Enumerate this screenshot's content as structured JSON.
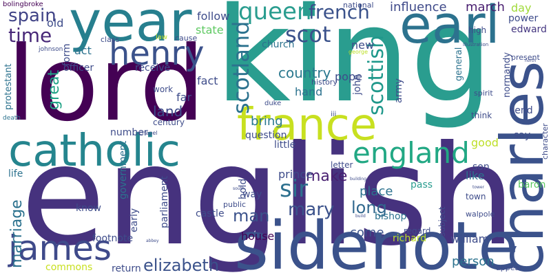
{
  "cloud": {
    "words": [
      {
        "text": "king",
        "color": "#2a9d8f"
      },
      {
        "text": "english",
        "color": "#46327e"
      },
      {
        "text": "lord",
        "color": "#440154"
      },
      {
        "text": "year",
        "color": "#277f8e"
      },
      {
        "text": "sidenote",
        "color": "#3b528b"
      },
      {
        "text": "catholic",
        "color": "#25858e"
      },
      {
        "text": "charles",
        "color": "#3b528b"
      },
      {
        "text": "earl",
        "color": "#2c728e"
      },
      {
        "text": "france",
        "color": "#c8e020"
      },
      {
        "text": "henry",
        "color": "#3b528b"
      },
      {
        "text": "james",
        "color": "#3f4a8a"
      },
      {
        "text": "england",
        "color": "#22a884"
      },
      {
        "text": "queen",
        "color": "#2a9d8f"
      },
      {
        "text": "scotland",
        "color": "#2c728e"
      },
      {
        "text": "scottish",
        "color": "#1f988b"
      },
      {
        "text": "scot",
        "color": "#3b528b"
      },
      {
        "text": "french",
        "color": "#3b528b"
      },
      {
        "text": "sir",
        "color": "#2d708e"
      },
      {
        "text": "mary",
        "color": "#3b528b"
      },
      {
        "text": "elizabeth",
        "color": "#3b528b"
      },
      {
        "text": "time",
        "color": "#482878"
      },
      {
        "text": "spain",
        "color": "#414487"
      },
      {
        "text": "marriage",
        "color": "#2c728e"
      },
      {
        "text": "great",
        "color": "#20a386"
      },
      {
        "text": "man",
        "color": "#3b528b"
      },
      {
        "text": "make",
        "color": "#481f70"
      },
      {
        "text": "long",
        "color": "#31688e"
      },
      {
        "text": "come",
        "color": "#3b528b"
      },
      {
        "text": "country",
        "color": "#2a788e"
      },
      {
        "text": "influence",
        "color": "#3e4989"
      },
      {
        "text": "march",
        "color": "#481d6f"
      },
      {
        "text": "edward",
        "color": "#453781"
      },
      {
        "text": "bring",
        "color": "#2a788e"
      },
      {
        "text": "land",
        "color": "#3e4c8a"
      },
      {
        "text": "good",
        "color": "#bddf26"
      },
      {
        "text": "house",
        "color": "#440154"
      },
      {
        "text": "prince",
        "color": "#3e4c8a"
      },
      {
        "text": "place",
        "color": "#2c728e"
      },
      {
        "text": "william",
        "color": "#3e4c8a"
      },
      {
        "text": "person",
        "color": "#2c728e"
      },
      {
        "text": "pope",
        "color": "#3e4c8a"
      },
      {
        "text": "hand",
        "color": "#2c728e"
      },
      {
        "text": "army",
        "color": "#3e4c8a"
      },
      {
        "text": "john",
        "color": "#3e4c8a"
      },
      {
        "text": "new",
        "color": "#3e4c8a"
      },
      {
        "text": "church",
        "color": "#2c728e"
      },
      {
        "text": "state",
        "color": "#5ec962"
      },
      {
        "text": "follow",
        "color": "#3e4c8a"
      },
      {
        "text": "old",
        "color": "#3e4c8a"
      },
      {
        "text": "form",
        "color": "#3e4c8a"
      },
      {
        "text": "act",
        "color": "#2c728e"
      },
      {
        "text": "officer",
        "color": "#3e4c8a"
      },
      {
        "text": "receive",
        "color": "#3e4c8a"
      },
      {
        "text": "government",
        "color": "#2c728e"
      },
      {
        "text": "protestant",
        "color": "#2c728e"
      },
      {
        "text": "work",
        "color": "#3e4c8a"
      },
      {
        "text": "far",
        "color": "#3e4c8a"
      },
      {
        "text": "fact",
        "color": "#3e4c8a"
      },
      {
        "text": "century",
        "color": "#3e4c8a"
      },
      {
        "text": "day",
        "color": "#a0da39"
      },
      {
        "text": "power",
        "color": "#3e4c8a"
      },
      {
        "text": "high",
        "color": "#3e4c8a"
      },
      {
        "text": "general",
        "color": "#2c728e"
      },
      {
        "text": "normandy",
        "color": "#3e4c8a"
      },
      {
        "text": "history",
        "color": "#3e4c8a"
      },
      {
        "text": "national",
        "color": "#3e4c8a"
      },
      {
        "text": "parliament",
        "color": "#3e4c8a"
      },
      {
        "text": "early",
        "color": "#3e4c8a"
      },
      {
        "text": "castle",
        "color": "#3e4c8a"
      },
      {
        "text": "way",
        "color": "#3e4c8a"
      },
      {
        "text": "hold",
        "color": "#3e4c8a"
      },
      {
        "text": "public",
        "color": "#3e4c8a"
      },
      {
        "text": "little",
        "color": "#3e4c8a"
      },
      {
        "text": "question",
        "color": "#3e4c8a"
      },
      {
        "text": "letter",
        "color": "#3e4c8a"
      },
      {
        "text": "bishop",
        "color": "#2c728e"
      },
      {
        "text": "pass",
        "color": "#2a9d8f"
      },
      {
        "text": "town",
        "color": "#3e4c8a"
      },
      {
        "text": "regard",
        "color": "#3e4c8a"
      },
      {
        "text": "subject",
        "color": "#3e4c8a"
      },
      {
        "text": "walpole",
        "color": "#3e4c8a"
      },
      {
        "text": "baron",
        "color": "#5ec962"
      },
      {
        "text": "son",
        "color": "#3e4c8a"
      },
      {
        "text": "like",
        "color": "#2c728e"
      },
      {
        "text": "say",
        "color": "#3e4c8a"
      },
      {
        "text": "send",
        "color": "#3e4c8a"
      },
      {
        "text": "think",
        "color": "#3e4c8a"
      },
      {
        "text": "spirit",
        "color": "#3e4c8a"
      },
      {
        "text": "character",
        "color": "#3e4c8a"
      },
      {
        "text": "life",
        "color": "#2c728e"
      },
      {
        "text": "know",
        "color": "#3e4c8a"
      },
      {
        "text": "number",
        "color": "#3e4c8a"
      },
      {
        "text": "footnote",
        "color": "#3e4c8a"
      },
      {
        "text": "commons",
        "color": "#c8e020"
      },
      {
        "text": "return",
        "color": "#3e4c8a"
      },
      {
        "text": "richard",
        "color": "#bddf26"
      },
      {
        "text": "appear",
        "color": "#3e4c8a"
      },
      {
        "text": "present",
        "color": "#3e4c8a"
      },
      {
        "text": "bolingbroke",
        "color": "#440154"
      },
      {
        "text": "class",
        "color": "#3e4c8a"
      },
      {
        "text": "law",
        "color": "#bddf26"
      },
      {
        "text": "cause",
        "color": "#3e4c8a"
      },
      {
        "text": "johnson",
        "color": "#3e4c8a"
      },
      {
        "text": "chapel",
        "color": "#3e4c8a"
      },
      {
        "text": "duke",
        "color": "#3e4c8a"
      },
      {
        "text": "iii",
        "color": "#3e4c8a"
      },
      {
        "text": "death",
        "color": "#2c728e"
      },
      {
        "text": "illustration",
        "color": "#3e4c8a"
      },
      {
        "text": "george",
        "color": "#bddf26"
      },
      {
        "text": "north",
        "color": "#3e4c8a"
      },
      {
        "text": "tower",
        "color": "#3e4c8a"
      },
      {
        "text": "south",
        "color": "#3e4c8a"
      },
      {
        "text": "abbey",
        "color": "#3e4c8a"
      },
      {
        "text": "building",
        "color": "#3e4c8a"
      },
      {
        "text": "build",
        "color": "#3e4c8a"
      }
    ]
  }
}
